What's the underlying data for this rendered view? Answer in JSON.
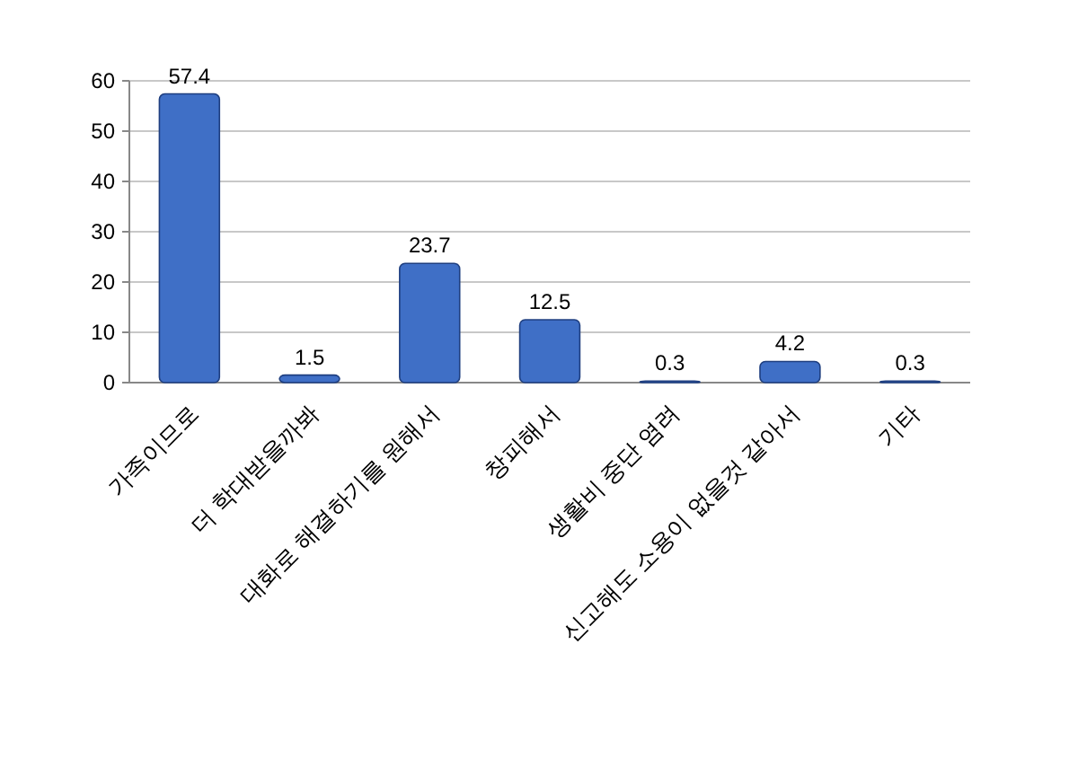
{
  "chart_data": {
    "type": "bar",
    "categories": [
      "가족이므로",
      "더 학대받을까봐",
      "대화로 해결하기를 원해서",
      "창피해서",
      "생활비 중단 염려",
      "신고해도 소용이 없을것 같아서",
      "기타"
    ],
    "values": [
      57.4,
      1.5,
      23.7,
      12.5,
      0.3,
      4.2,
      0.3
    ],
    "color": "#3f6fc6",
    "ylim": [
      0,
      60
    ],
    "yticks": [
      0,
      10,
      20,
      30,
      40,
      50,
      60
    ],
    "grid": "y",
    "data_labels": true
  }
}
